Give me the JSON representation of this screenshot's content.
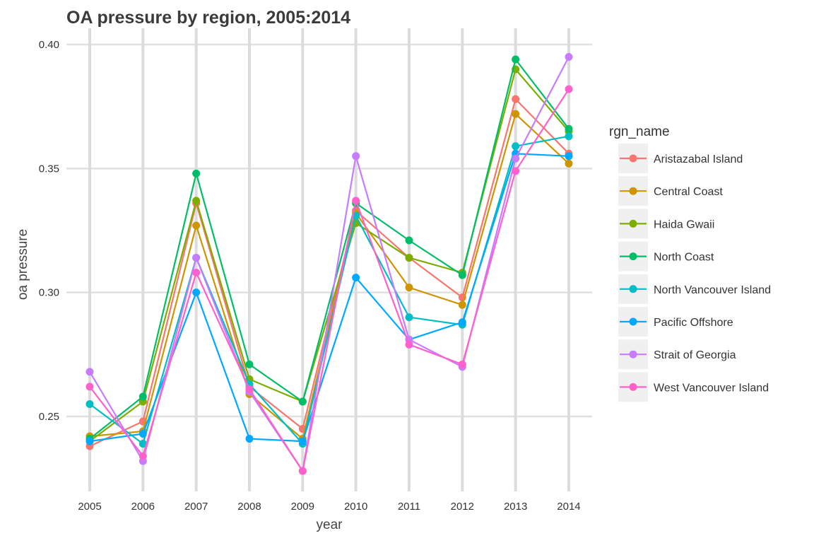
{
  "chart_data": {
    "type": "line",
    "title": "OA pressure by region, 2005:2014",
    "xlabel": "year",
    "ylabel": "oa pressure",
    "x": [
      2005,
      2006,
      2007,
      2008,
      2009,
      2010,
      2011,
      2012,
      2013,
      2014
    ],
    "x_tick_labels": [
      "2005",
      "2006",
      "2007",
      "2008",
      "2009",
      "2010",
      "2011",
      "2012",
      "2013",
      "2014"
    ],
    "y_ticks": [
      0.25,
      0.3,
      0.35,
      0.4
    ],
    "y_tick_labels": [
      "0.25",
      "0.30",
      "0.35",
      "0.40"
    ],
    "ylim": [
      0.218,
      0.404
    ],
    "grid": true,
    "legend_title": "rgn_name",
    "legend_position": "right",
    "series": [
      {
        "name": "Aristazabal Island",
        "color": "#F8766D",
        "values": [
          0.238,
          0.248,
          0.336,
          0.262,
          0.245,
          0.333,
          0.314,
          0.298,
          0.378,
          0.356
        ]
      },
      {
        "name": "Central Coast",
        "color": "#CD9600",
        "values": [
          0.242,
          0.244,
          0.327,
          0.259,
          0.241,
          0.332,
          0.302,
          0.295,
          0.372,
          0.352
        ]
      },
      {
        "name": "Haida Gwaii",
        "color": "#7CAE00",
        "values": [
          0.24,
          0.256,
          0.337,
          0.265,
          0.256,
          0.328,
          0.314,
          0.308,
          0.39,
          0.365
        ]
      },
      {
        "name": "North Coast",
        "color": "#00BE67",
        "values": [
          0.241,
          0.258,
          0.348,
          0.271,
          0.256,
          0.336,
          0.321,
          0.307,
          0.394,
          0.366
        ]
      },
      {
        "name": "North Vancouver Island",
        "color": "#00BFC4",
        "values": [
          0.255,
          0.239,
          0.314,
          0.263,
          0.239,
          0.331,
          0.29,
          0.287,
          0.359,
          0.363
        ]
      },
      {
        "name": "Pacific Offshore",
        "color": "#00A9FF",
        "values": [
          0.24,
          0.243,
          0.3,
          0.241,
          0.24,
          0.306,
          0.281,
          0.288,
          0.356,
          0.355
        ]
      },
      {
        "name": "Strait of Georgia",
        "color": "#C77CFF",
        "values": [
          0.268,
          0.232,
          0.314,
          0.26,
          0.228,
          0.355,
          0.281,
          0.27,
          0.354,
          0.395
        ]
      },
      {
        "name": "West Vancouver Island",
        "color": "#FF61CC",
        "values": [
          0.262,
          0.234,
          0.308,
          0.261,
          0.228,
          0.337,
          0.279,
          0.271,
          0.349,
          0.382
        ]
      }
    ]
  }
}
